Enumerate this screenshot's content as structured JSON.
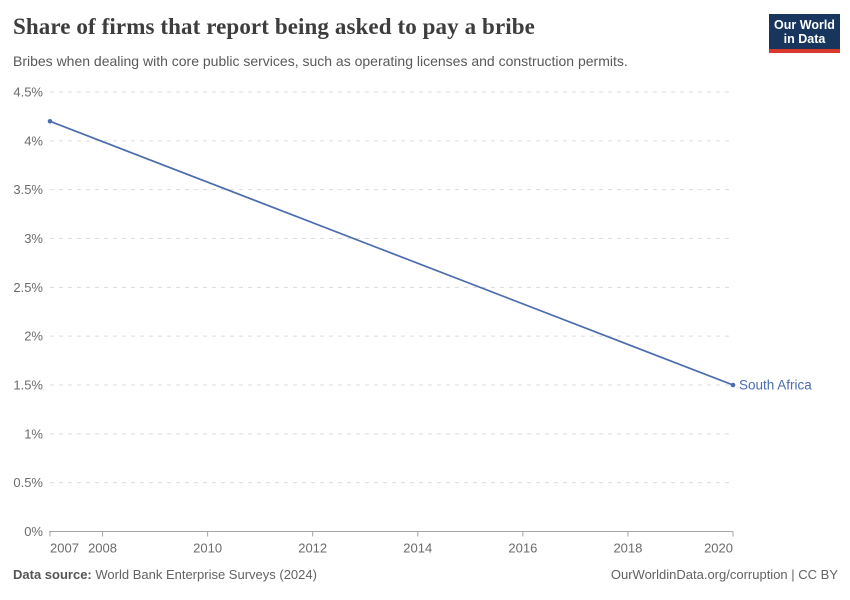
{
  "chart_data": {
    "type": "line",
    "title": "Share of firms that report being asked to pay a bribe",
    "subtitle": "Bribes when dealing with core public services, such as operating licenses and construction permits.",
    "series": [
      {
        "name": "South Africa",
        "color": "#4c6cae",
        "x": [
          2007,
          2020
        ],
        "y": [
          4.2,
          1.5
        ]
      }
    ],
    "xlim": [
      2007,
      2020
    ],
    "ylim": [
      0,
      4.5
    ],
    "xticks": [
      2007,
      2008,
      2010,
      2012,
      2014,
      2016,
      2018,
      2020
    ],
    "yticks": [
      0,
      0.5,
      1,
      1.5,
      2,
      2.5,
      3,
      3.5,
      4,
      4.5
    ],
    "ytick_labels": [
      "0%",
      "0.5%",
      "1%",
      "1.5%",
      "2%",
      "2.5%",
      "3%",
      "3.5%",
      "4%",
      "4.5%"
    ],
    "grid": "horizontal-dashed",
    "legend_position": "end-of-line-label",
    "colors": {
      "grid": "#dcdcdc",
      "axis": "#a5a5a5",
      "tick_text": "#6b6b6b"
    }
  },
  "header": {
    "logo": {
      "line1": "Our World",
      "line2": "in Data",
      "bg_color": "#18365d",
      "accent_color": "#d73a2d"
    }
  },
  "footer": {
    "source_label": "Data source:",
    "source_value": "World Bank Enterprise Surveys (2024)",
    "credit": "OurWorldinData.org/corruption | CC BY"
  }
}
